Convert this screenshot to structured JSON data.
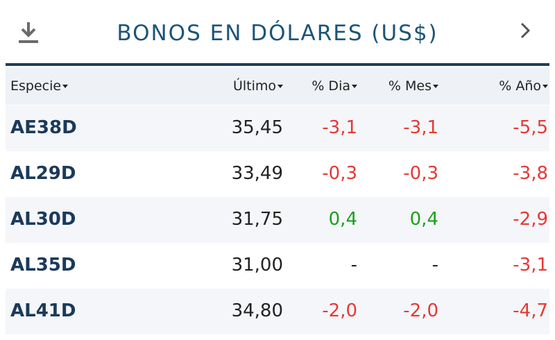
{
  "header": {
    "title": "BONOS EN DÓLARES (US$)"
  },
  "table": {
    "columns": [
      "Especie",
      "Último",
      "% Dia",
      "% Mes",
      "% Año"
    ],
    "rows": [
      [
        "AE38D",
        "35,45",
        "-3,1",
        "-3,1",
        "-5,5"
      ],
      [
        "AL29D",
        "33,49",
        "-0,3",
        "-0,3",
        "-3,8"
      ],
      [
        "AL30D",
        "31,75",
        "0,4",
        "0,4",
        "-2,9"
      ],
      [
        "AL35D",
        "31,00",
        "-",
        "-",
        "-3,1"
      ],
      [
        "AL41D",
        "34,80",
        "-2,0",
        "-2,0",
        "-4,7"
      ]
    ]
  }
}
